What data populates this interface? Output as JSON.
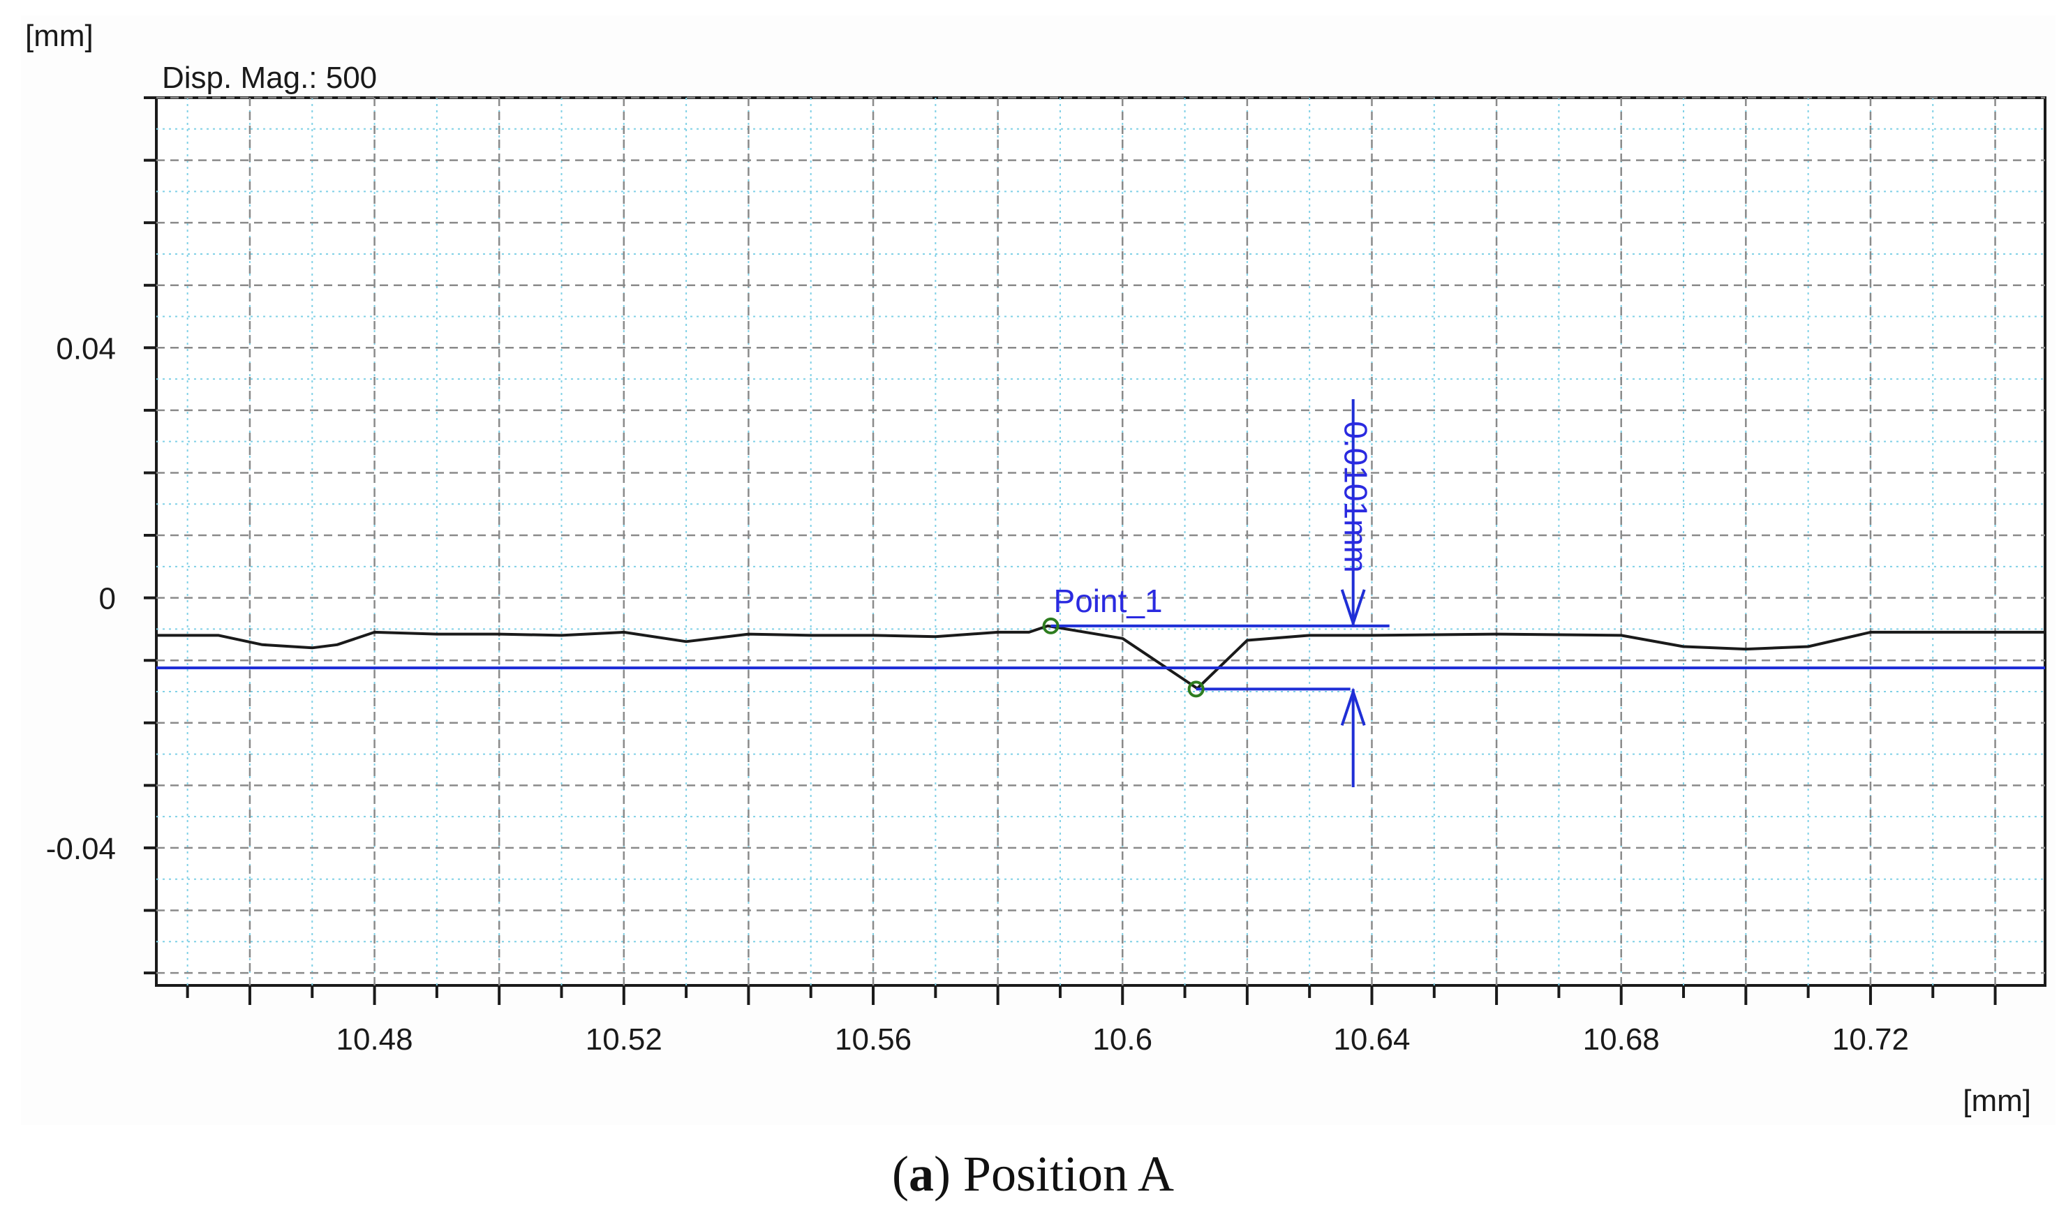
{
  "chart_data": {
    "type": "line",
    "display_magnification": "Disp. Mag.: 500",
    "y_unit": "[mm]",
    "x_unit": "[mm]",
    "xlim": [
      10.445,
      10.748
    ],
    "ylim": [
      -0.062,
      0.08
    ],
    "x_ticks": [
      {
        "value": 10.48,
        "label": "10.48"
      },
      {
        "value": 10.52,
        "label": "10.52"
      },
      {
        "value": 10.56,
        "label": "10.56"
      },
      {
        "value": 10.6,
        "label": "10.6"
      },
      {
        "value": 10.64,
        "label": "10.64"
      },
      {
        "value": 10.68,
        "label": "10.68"
      },
      {
        "value": 10.72,
        "label": "10.72"
      }
    ],
    "y_ticks": [
      {
        "value": 0.04,
        "label": "0.04"
      },
      {
        "value": 0,
        "label": "0"
      },
      {
        "value": -0.04,
        "label": "-0.04"
      }
    ],
    "x_minor_step": 0.01,
    "y_minor_step": 0.01,
    "grid": true,
    "series": [
      {
        "color": "#1a1a1a",
        "x": [
          10.445,
          10.455,
          10.462,
          10.47,
          10.474,
          10.48,
          10.49,
          10.5,
          10.51,
          10.52,
          10.53,
          10.54,
          10.55,
          10.56,
          10.57,
          10.58,
          10.585,
          10.588,
          10.6,
          10.612,
          10.62,
          10.63,
          10.64,
          10.66,
          10.68,
          10.69,
          10.7,
          10.71,
          10.72,
          10.73,
          10.748
        ],
        "y": [
          -0.006,
          -0.006,
          -0.0075,
          -0.008,
          -0.0075,
          -0.0055,
          -0.0058,
          -0.0058,
          -0.006,
          -0.0055,
          -0.007,
          -0.0058,
          -0.006,
          -0.006,
          -0.0062,
          -0.0055,
          -0.0055,
          -0.0045,
          -0.0065,
          -0.0145,
          -0.0068,
          -0.006,
          -0.006,
          -0.0058,
          -0.006,
          -0.0078,
          -0.0082,
          -0.0078,
          -0.0055,
          -0.0055,
          -0.0055
        ]
      }
    ],
    "reference_line": {
      "y": -0.0112,
      "color": "#1f2fd6"
    },
    "measurement": {
      "point_label": "Point_1",
      "point1": {
        "x": 10.5885,
        "y": -0.0045
      },
      "point2": {
        "x": 10.6118,
        "y": -0.0146
      },
      "dimension_x": 10.637,
      "value_label": "0.0101mm",
      "marker_color": "#2e7d1f",
      "color": "#1f2fd6"
    }
  },
  "caption": {
    "prefix": "(",
    "letter": "a",
    "text": ") Position A"
  }
}
